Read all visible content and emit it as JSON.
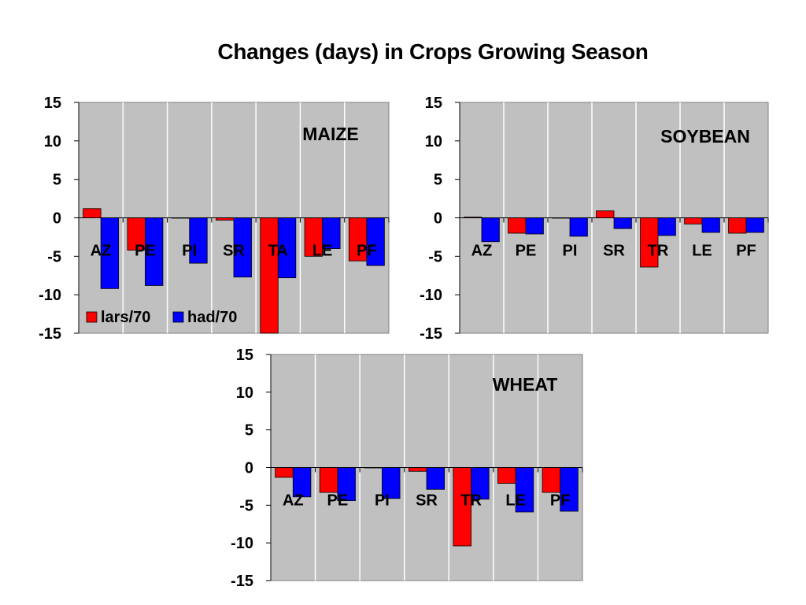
{
  "title": "Changes (days) in Crops Growing Season",
  "colors": {
    "plot_bg": "#c0c0c0",
    "lars": "#ff0000",
    "had": "#0000ff",
    "grid": "#ffffff"
  },
  "chart_data": [
    {
      "type": "bar",
      "title": "MAIZE",
      "categories": [
        "AZ",
        "PE",
        "PI",
        "SR",
        "TA",
        "LE",
        "PF"
      ],
      "ylim": [
        -15,
        15
      ],
      "yticks": [
        15,
        10,
        5,
        0,
        -5,
        -10,
        -15
      ],
      "legend": "bottom-left",
      "series": [
        {
          "name": "lars/70",
          "values": [
            1.2,
            -4.2,
            0,
            -0.3,
            -15,
            -5,
            -5.6
          ]
        },
        {
          "name": "had/70",
          "values": [
            -9.2,
            -8.8,
            -5.9,
            -7.7,
            -7.8,
            -4,
            -6.2
          ]
        }
      ]
    },
    {
      "type": "bar",
      "title": "SOYBEAN",
      "categories": [
        "AZ",
        "PE",
        "PI",
        "SR",
        "TR",
        "LE",
        "PF"
      ],
      "ylim": [
        -15,
        15
      ],
      "yticks": [
        15,
        10,
        5,
        0,
        -5,
        -10,
        -15
      ],
      "series": [
        {
          "name": "lars/70",
          "values": [
            0.1,
            -2,
            0,
            0.9,
            -6.4,
            -0.8,
            -2
          ]
        },
        {
          "name": "had/70",
          "values": [
            -3.1,
            -2.1,
            -2.4,
            -1.4,
            -2.3,
            -1.9,
            -1.9
          ]
        }
      ]
    },
    {
      "type": "bar",
      "title": "WHEAT",
      "categories": [
        "AZ",
        "PE",
        "PI",
        "SR",
        "TR",
        "LE",
        "PF"
      ],
      "ylim": [
        -15,
        15
      ],
      "yticks": [
        15,
        10,
        5,
        0,
        -5,
        -10,
        -15
      ],
      "series": [
        {
          "name": "lars/70",
          "values": [
            -1.3,
            -3.3,
            0,
            -0.5,
            -10.4,
            -2.1,
            -3.3
          ]
        },
        {
          "name": "had/70",
          "values": [
            -3.9,
            -4.4,
            -4.1,
            -2.9,
            -4.2,
            -5.9,
            -5.8
          ]
        }
      ]
    }
  ]
}
